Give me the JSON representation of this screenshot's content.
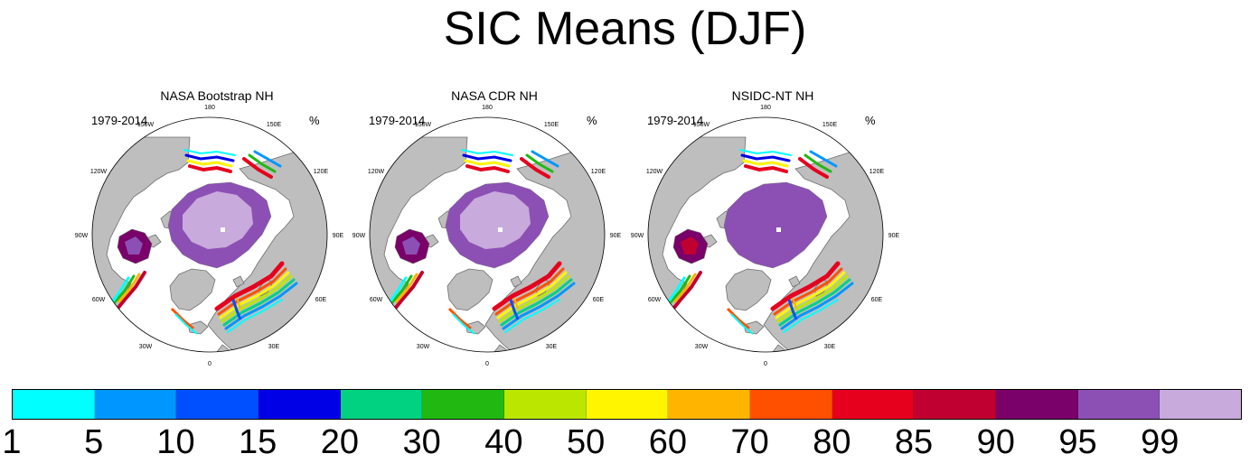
{
  "title": "SIC Means (DJF)",
  "panels": [
    {
      "title": "NASA Bootstrap NH",
      "period": "1979-2014",
      "units": "%"
    },
    {
      "title": "NASA CDR NH",
      "period": "1979-2014",
      "units": "%"
    },
    {
      "title": "NSIDC-NT NH",
      "period": "1979-2014",
      "units": "%"
    }
  ],
  "longitude_labels": [
    "180",
    "150E",
    "120E",
    "90E",
    "60E",
    "30E",
    "0",
    "30W",
    "60W",
    "90W",
    "120W",
    "150W"
  ],
  "colorbar": {
    "labels": [
      "1",
      "5",
      "10",
      "15",
      "20",
      "30",
      "40",
      "50",
      "60",
      "70",
      "80",
      "85",
      "90",
      "95",
      "99"
    ],
    "colors": [
      "#00ffff",
      "#0096ff",
      "#0050ff",
      "#0000e6",
      "#00d282",
      "#22b812",
      "#bbe600",
      "#fff500",
      "#ffb400",
      "#ff5000",
      "#e6001e",
      "#c00030",
      "#7a006a",
      "#8c50b4",
      "#c8aadc"
    ]
  },
  "colors": {
    "land": "#bebebe",
    "ocean": "#ffffff",
    "coast": "#6e6e6e"
  }
}
